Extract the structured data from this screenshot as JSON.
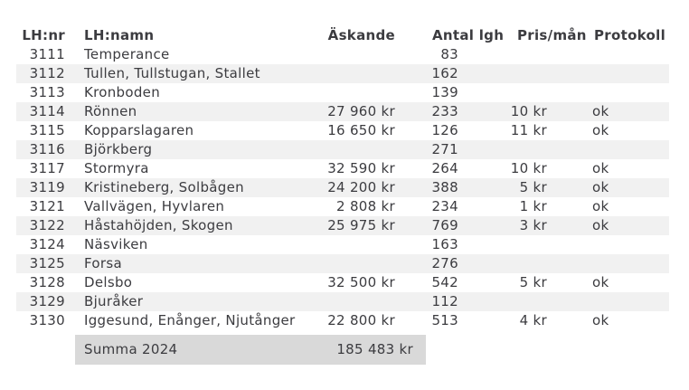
{
  "colors": {
    "text": "#3c3c40",
    "stripe": "#f1f1f1",
    "summary_bg": "#d9d9d9",
    "background": "#ffffff"
  },
  "table": {
    "columns": [
      {
        "key": "nr",
        "label": "LH:nr"
      },
      {
        "key": "name",
        "label": "LH:namn"
      },
      {
        "key": "ask",
        "label": "Äskande"
      },
      {
        "key": "antal",
        "label": "Antal lgh"
      },
      {
        "key": "pris",
        "label": "Pris/mån"
      },
      {
        "key": "prot",
        "label": "Protokoll"
      }
    ],
    "rows": [
      {
        "nr": "3111",
        "name": "Temperance",
        "ask": "",
        "antal": "83",
        "pris": "",
        "prot": ""
      },
      {
        "nr": "3112",
        "name": "Tullen, Tullstugan, Stallet",
        "ask": "",
        "antal": "162",
        "pris": "",
        "prot": ""
      },
      {
        "nr": "3113",
        "name": "Kronboden",
        "ask": "",
        "antal": "139",
        "pris": "",
        "prot": ""
      },
      {
        "nr": "3114",
        "name": "Rönnen",
        "ask": "27 960 kr",
        "antal": "233",
        "pris": "10 kr",
        "prot": "ok"
      },
      {
        "nr": "3115",
        "name": "Kopparslagaren",
        "ask": "16 650 kr",
        "antal": "126",
        "pris": "11 kr",
        "prot": "ok"
      },
      {
        "nr": "3116",
        "name": "Björkberg",
        "ask": "",
        "antal": "271",
        "pris": "",
        "prot": ""
      },
      {
        "nr": "3117",
        "name": "Stormyra",
        "ask": "32 590 kr",
        "antal": "264",
        "pris": "10 kr",
        "prot": "ok"
      },
      {
        "nr": "3119",
        "name": "Kristineberg, Solbågen",
        "ask": "24 200 kr",
        "antal": "388",
        "pris": "5 kr",
        "prot": "ok"
      },
      {
        "nr": "3121",
        "name": "Vallvägen, Hyvlaren",
        "ask": "2 808 kr",
        "antal": "234",
        "pris": "1 kr",
        "prot": "ok"
      },
      {
        "nr": "3122",
        "name": "Håstahöjden, Skogen",
        "ask": "25 975 kr",
        "antal": "769",
        "pris": "3 kr",
        "prot": "ok"
      },
      {
        "nr": "3124",
        "name": "Näsviken",
        "ask": "",
        "antal": "163",
        "pris": "",
        "prot": ""
      },
      {
        "nr": "3125",
        "name": "Forsa",
        "ask": "",
        "antal": "276",
        "pris": "",
        "prot": ""
      },
      {
        "nr": "3128",
        "name": "Delsbo",
        "ask": "32 500 kr",
        "antal": "542",
        "pris": "5 kr",
        "prot": "ok"
      },
      {
        "nr": "3129",
        "name": "Bjuråker",
        "ask": "",
        "antal": "112",
        "pris": "",
        "prot": ""
      },
      {
        "nr": "3130",
        "name": "Iggesund, Enånger, Njutånger",
        "ask": "22 800 kr",
        "antal": "513",
        "pris": "4 kr",
        "prot": "ok"
      }
    ],
    "summary": {
      "label": "Summa 2024",
      "value": "185 483 kr"
    }
  }
}
